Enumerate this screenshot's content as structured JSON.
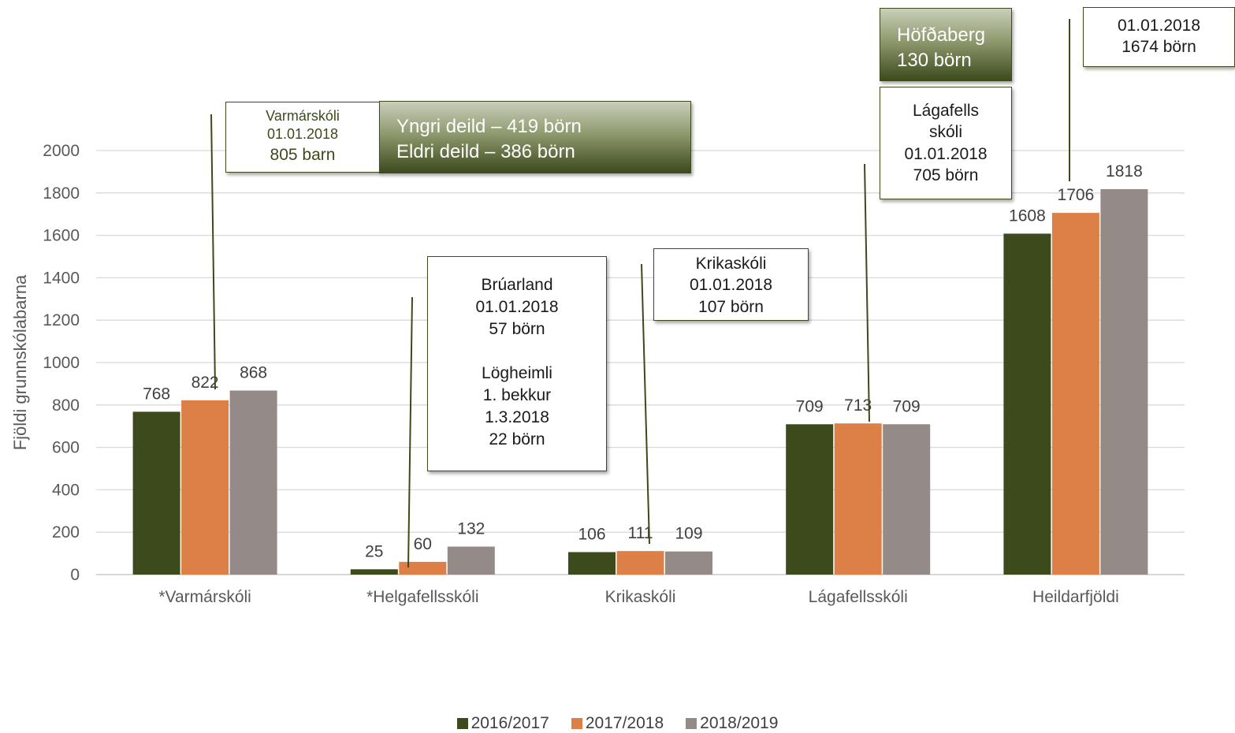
{
  "chart_data": {
    "type": "bar",
    "ylabel": "Fjöldi grunnskólabarna",
    "xlabel": "",
    "ylim": [
      0,
      2000
    ],
    "yticks": [
      0,
      200,
      400,
      600,
      800,
      1000,
      1200,
      1400,
      1600,
      1800,
      2000
    ],
    "grid": true,
    "legend_position": "bottom",
    "categories": [
      "*Varmárskóli",
      "*Helgafellsskóli",
      "Krikaskóli",
      "Lágafellsskóli",
      "Heildarfjöldi"
    ],
    "series": [
      {
        "name": "2016/2017",
        "color": "#3c4a1c",
        "values": [
          768,
          25,
          106,
          709,
          1608
        ]
      },
      {
        "name": "2017/2018",
        "color": "#dd8047",
        "values": [
          822,
          60,
          111,
          713,
          1706
        ]
      },
      {
        "name": "2018/2019",
        "color": "#948a87",
        "values": [
          868,
          132,
          109,
          709,
          1818
        ]
      }
    ]
  },
  "annotations": {
    "varmar": {
      "lines": [
        "Varmárskóli",
        "01.01.2018",
        "805 barn"
      ]
    },
    "varmar_detail": {
      "lines": [
        "Yngri deild – 419 börn",
        "Eldri deild – 386 börn"
      ]
    },
    "bruarland": {
      "lines": [
        "Brúarland",
        "01.01.2018",
        "57 börn",
        "",
        "Lögheimli",
        "1. bekkur",
        "1.3.2018",
        "22 börn"
      ]
    },
    "krika": {
      "lines": [
        "Krikaskóli",
        "01.01.2018",
        "107 börn"
      ]
    },
    "hofdaberg": {
      "lines": [
        "Höfðaberg",
        "130 börn"
      ]
    },
    "lagafells": {
      "lines": [
        "Lágafells",
        "skóli",
        "01.01.2018",
        "705 börn"
      ]
    },
    "total": {
      "lines": [
        "01.01.2018",
        "1674 börn"
      ]
    }
  }
}
